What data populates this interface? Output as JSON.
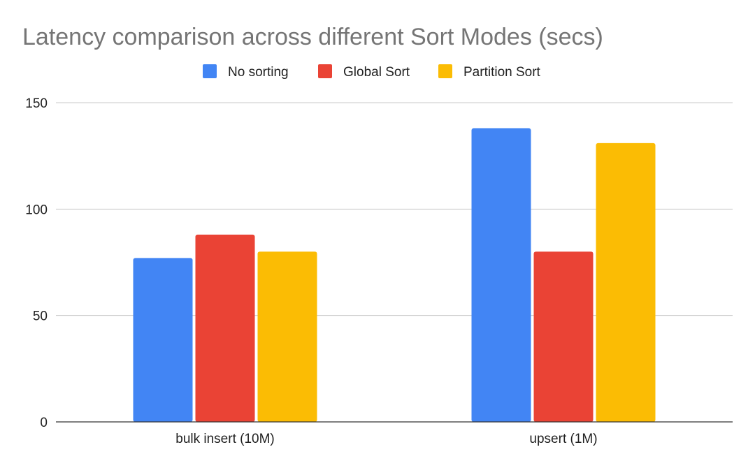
{
  "chart_data": {
    "type": "bar",
    "title": "Latency comparison across different Sort Modes (secs)",
    "xlabel": "",
    "ylabel": "",
    "categories": [
      "bulk insert (10M)",
      "upsert (1M)"
    ],
    "series": [
      {
        "name": "No sorting",
        "color": "#4285F4",
        "values": [
          77,
          138
        ]
      },
      {
        "name": "Global Sort",
        "color": "#EA4335",
        "values": [
          88,
          80
        ]
      },
      {
        "name": "Partition Sort",
        "color": "#FBBC04",
        "values": [
          80,
          131
        ]
      }
    ],
    "ylim": [
      0,
      150
    ],
    "yticks": [
      0,
      50,
      100,
      150
    ],
    "grid": true,
    "legend_position": "top"
  }
}
